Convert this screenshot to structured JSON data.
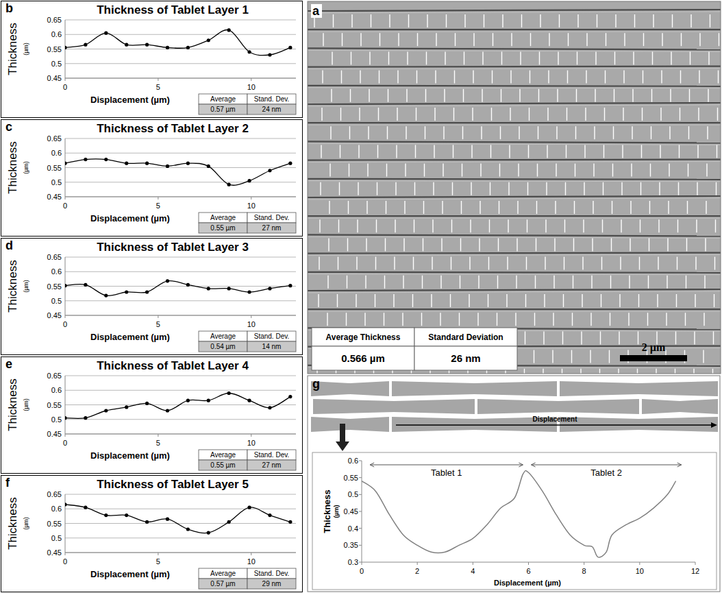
{
  "chart_data": [
    {
      "type": "line",
      "panel": "b",
      "title": "Thickness of Tablet Layer 1",
      "x_label": "Displacement (µm)",
      "y_label": "Thickness (µm)",
      "x": [
        0,
        1.1,
        2.2,
        3.3,
        4.4,
        5.5,
        6.6,
        7.7,
        8.8,
        9.9,
        11,
        12.1
      ],
      "values": [
        0.555,
        0.565,
        0.605,
        0.565,
        0.565,
        0.555,
        0.555,
        0.58,
        0.615,
        0.54,
        0.53,
        0.555
      ],
      "color": "#000000",
      "marker": "circle",
      "line_style": "solid",
      "grid": true,
      "xlim": [
        0,
        12.4
      ],
      "xticks": [
        0,
        5,
        10
      ],
      "ylim": [
        0.45,
        0.65
      ],
      "yticks": [
        0.45,
        0.5,
        0.55,
        0.6,
        0.65
      ],
      "stats": {
        "headers": [
          "Average",
          "Stand. Dev."
        ],
        "values": [
          "0.57 µm",
          "24 nm"
        ]
      }
    },
    {
      "type": "line",
      "panel": "c",
      "title": "Thickness of Tablet Layer 2",
      "x_label": "Displacement (µm)",
      "y_label": "Thickness (µm)",
      "x": [
        0,
        1.1,
        2.2,
        3.3,
        4.4,
        5.5,
        6.6,
        7.7,
        8.8,
        9.9,
        11,
        12.1
      ],
      "values": [
        0.565,
        0.578,
        0.578,
        0.565,
        0.565,
        0.555,
        0.565,
        0.555,
        0.492,
        0.505,
        0.54,
        0.565
      ],
      "color": "#000000",
      "marker": "circle",
      "line_style": "solid",
      "grid": true,
      "xlim": [
        0,
        12.4
      ],
      "xticks": [
        0,
        5,
        10
      ],
      "ylim": [
        0.45,
        0.65
      ],
      "yticks": [
        0.45,
        0.5,
        0.55,
        0.6,
        0.65
      ],
      "stats": {
        "headers": [
          "Average",
          "Stand. Dev."
        ],
        "values": [
          "0.55 µm",
          "27 nm"
        ]
      }
    },
    {
      "type": "line",
      "panel": "d",
      "title": "Thickness of Tablet Layer 3",
      "x_label": "Displacement (µm)",
      "y_label": "Thickness (µm)",
      "x": [
        0,
        1.1,
        2.2,
        3.3,
        4.4,
        5.5,
        6.6,
        7.7,
        8.8,
        9.9,
        11,
        12.1
      ],
      "values": [
        0.552,
        0.555,
        0.518,
        0.53,
        0.53,
        0.568,
        0.555,
        0.542,
        0.542,
        0.53,
        0.542,
        0.552
      ],
      "color": "#000000",
      "marker": "circle",
      "line_style": "solid",
      "grid": true,
      "xlim": [
        0,
        12.4
      ],
      "xticks": [
        0,
        5,
        10
      ],
      "ylim": [
        0.45,
        0.65
      ],
      "yticks": [
        0.45,
        0.5,
        0.55,
        0.6,
        0.65
      ],
      "stats": {
        "headers": [
          "Average",
          "Stand. Dev."
        ],
        "values": [
          "0.54 µm",
          "14 nm"
        ]
      }
    },
    {
      "type": "line",
      "panel": "e",
      "title": "Thickness of Tablet Layer 4",
      "x_label": "Displacement (µm)",
      "y_label": "Thickness (µm)",
      "x": [
        0,
        1.1,
        2.2,
        3.3,
        4.4,
        5.5,
        6.6,
        7.7,
        8.8,
        9.9,
        11,
        12.1
      ],
      "values": [
        0.505,
        0.505,
        0.53,
        0.542,
        0.555,
        0.53,
        0.565,
        0.565,
        0.59,
        0.565,
        0.54,
        0.578
      ],
      "color": "#000000",
      "marker": "circle",
      "line_style": "solid",
      "grid": true,
      "xlim": [
        0,
        12.4
      ],
      "xticks": [
        0,
        5,
        10
      ],
      "ylim": [
        0.45,
        0.65
      ],
      "yticks": [
        0.45,
        0.5,
        0.55,
        0.6,
        0.65
      ],
      "stats": {
        "headers": [
          "Average",
          "Stand. Dev."
        ],
        "values": [
          "0.55 µm",
          "27 nm"
        ]
      }
    },
    {
      "type": "line",
      "panel": "f",
      "title": "Thickness of Tablet Layer 5",
      "x_label": "Displacement (µm)",
      "y_label": "Thickness (µm)",
      "x": [
        0,
        1.1,
        2.2,
        3.3,
        4.4,
        5.5,
        6.6,
        7.7,
        8.8,
        9.9,
        11,
        12.1
      ],
      "values": [
        0.615,
        0.605,
        0.578,
        0.578,
        0.555,
        0.565,
        0.53,
        0.518,
        0.555,
        0.605,
        0.578,
        0.555
      ],
      "color": "#000000",
      "marker": "circle",
      "line_style": "solid",
      "grid": true,
      "xlim": [
        0,
        12.4
      ],
      "xticks": [
        0,
        5,
        10
      ],
      "ylim": [
        0.45,
        0.65
      ],
      "yticks": [
        0.45,
        0.5,
        0.55,
        0.6,
        0.65
      ],
      "stats": {
        "headers": [
          "Average",
          "Stand. Dev."
        ],
        "values": [
          "0.57 µm",
          "29 nm"
        ]
      }
    },
    {
      "type": "line",
      "panel": "g",
      "x_label": "Displacement (µm)",
      "y_label": "Thickness (µm)",
      "x": [
        0,
        0.5,
        1,
        1.5,
        2,
        2.5,
        3,
        3.5,
        4,
        4.5,
        5,
        5.5,
        5.8,
        6,
        6.5,
        7,
        7.5,
        8,
        8.3,
        8.5,
        8.8,
        9,
        9.5,
        10,
        10.5,
        11,
        11.3
      ],
      "values": [
        0.54,
        0.51,
        0.44,
        0.38,
        0.35,
        0.33,
        0.33,
        0.35,
        0.37,
        0.41,
        0.46,
        0.49,
        0.56,
        0.565,
        0.51,
        0.44,
        0.38,
        0.35,
        0.345,
        0.315,
        0.33,
        0.38,
        0.41,
        0.43,
        0.46,
        0.5,
        0.54
      ],
      "color": "#808080",
      "marker": "none",
      "line_style": "solid",
      "grid": false,
      "xlim": [
        0,
        12
      ],
      "xticks": [
        0,
        2,
        4,
        6,
        8,
        10,
        12
      ],
      "ylim": [
        0.3,
        0.6
      ],
      "yticks": [
        0.3,
        0.35,
        0.4,
        0.45,
        0.5,
        0.55,
        0.6
      ],
      "annotations": [
        {
          "text": "Tablet 1",
          "x": [
            0.3,
            5.8
          ]
        },
        {
          "text": "Tablet 2",
          "x": [
            6.1,
            11.5
          ]
        }
      ],
      "schematic_label": "Displacement"
    }
  ],
  "micrograph": {
    "panel": "a",
    "table": {
      "headers": [
        "Average Thickness",
        "Standard Deviation"
      ],
      "values": [
        "0.566 µm",
        "26 nm"
      ]
    },
    "scale_bar": "2 µm"
  }
}
